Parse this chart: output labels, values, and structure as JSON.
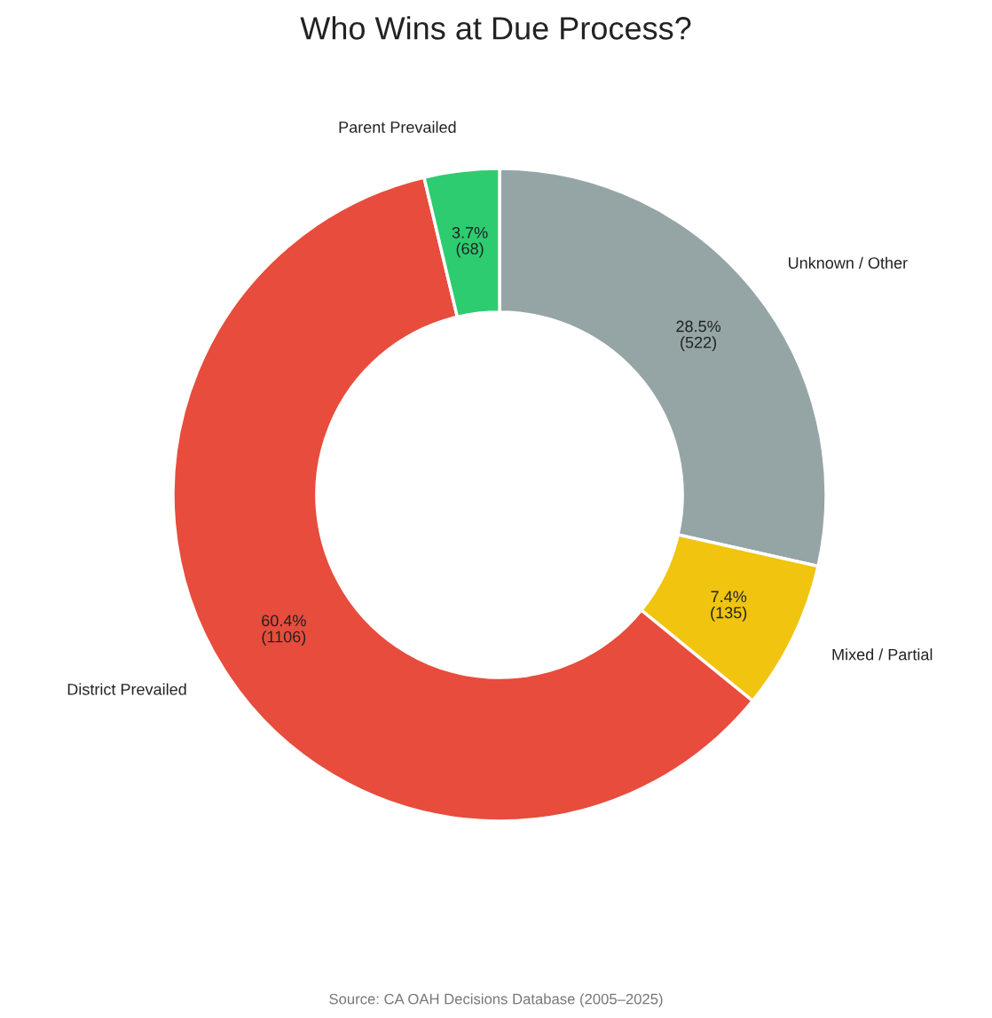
{
  "chart_data": {
    "type": "donut",
    "title": "Who Wins at Due Process?",
    "categories": [
      "Unknown / Other",
      "Mixed / Partial",
      "District Prevailed",
      "Parent Prevailed"
    ],
    "values": [
      522,
      135,
      1106,
      68
    ],
    "colors": [
      "#95a5a6",
      "#f1c40f",
      "#e74c3c",
      "#2ecc71"
    ],
    "value_labels": [
      "28.5%\n(522)",
      "7.4%\n(135)",
      "60.4%\n(1106)",
      "3.7%\n(68)"
    ],
    "annotations": [
      "Source: CA OAH Decisions Database (2005–2025)"
    ]
  }
}
